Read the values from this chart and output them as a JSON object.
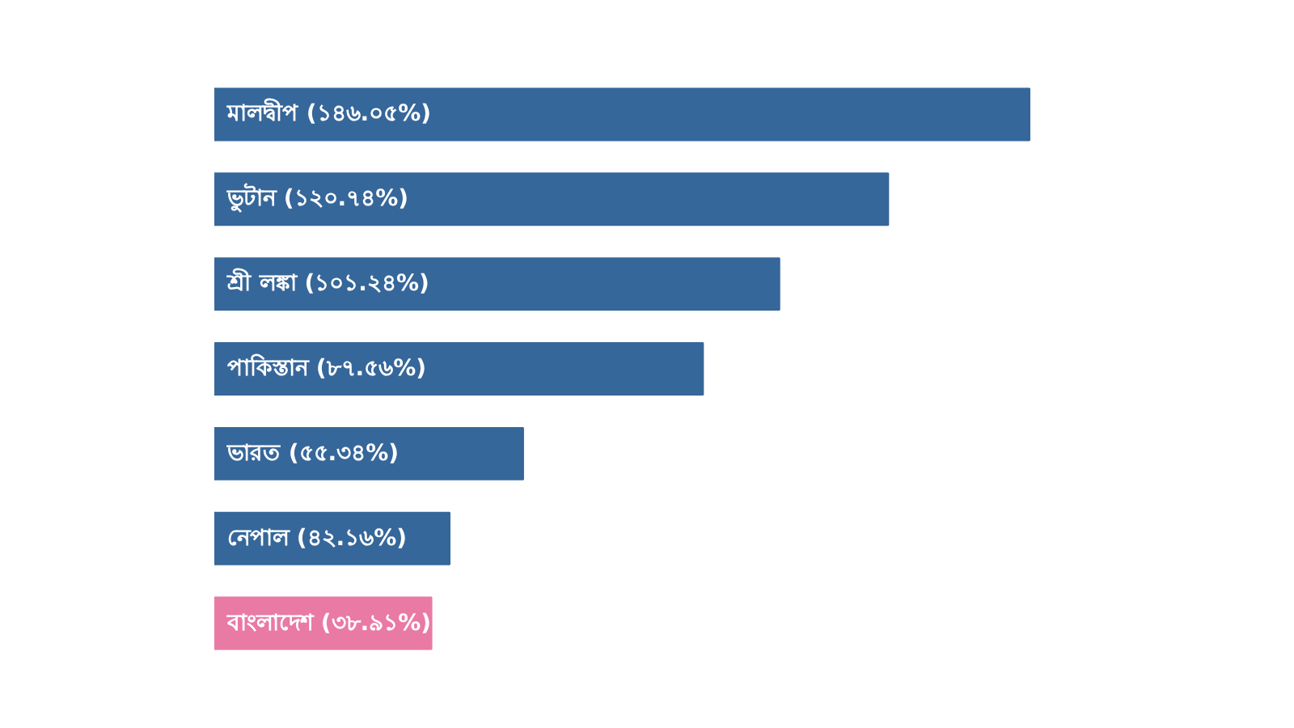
{
  "chart_data": {
    "type": "bar",
    "orientation": "horizontal",
    "categories": [
      "মালদ্বীপ",
      "ভুটান",
      "শ্রী লঙ্কা",
      "পাকিস্তান",
      "ভারত",
      "নেপাল",
      "বাংলাদেশ"
    ],
    "values": [
      146.05,
      120.74,
      101.24,
      87.56,
      55.34,
      42.16,
      38.91
    ],
    "value_labels": [
      "(১৪৬.০৫%)",
      "(১২০.৭৪%)",
      "(১০১.২৪%)",
      "(৮৭.৫৬%)",
      "(৫৫.৩৪%)",
      "(৪২.১৬%)",
      "(৩৮.৯১%)"
    ],
    "colors": [
      "#36679a",
      "#36679a",
      "#36679a",
      "#36679a",
      "#36679a",
      "#36679a",
      "#e97aa3"
    ]
  }
}
